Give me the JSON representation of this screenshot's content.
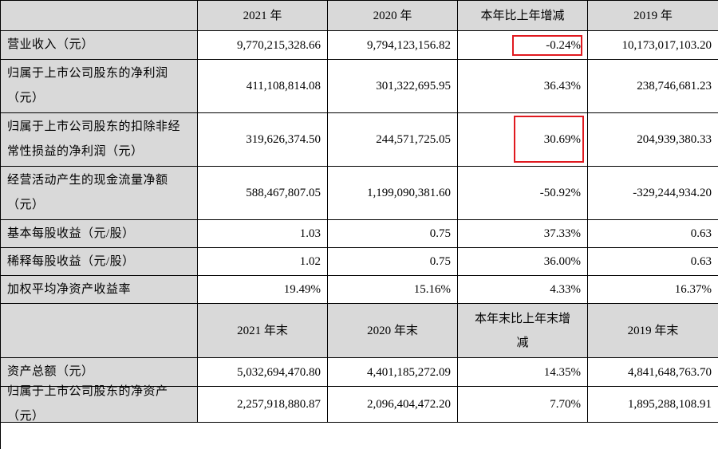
{
  "header1": [
    "",
    "2021 年",
    "2020 年",
    "本年比上年增减",
    "2019 年"
  ],
  "rows1": [
    {
      "label": "营业收入（元）",
      "v2021": "9,770,215,328.66",
      "v2020": "9,794,123,156.82",
      "change": "-0.24%",
      "v2019": "10,173,017,103.20"
    },
    {
      "label": "归属于上市公司股东的净利润（元）",
      "v2021": "411,108,814.08",
      "v2020": "301,322,695.95",
      "change": "36.43%",
      "v2019": "238,746,681.23"
    },
    {
      "label": "归属于上市公司股东的扣除非经常性损益的净利润（元）",
      "v2021": "319,626,374.50",
      "v2020": "244,571,725.05",
      "change": "30.69%",
      "v2019": "204,939,380.33"
    },
    {
      "label": "经营活动产生的现金流量净额（元）",
      "v2021": "588,467,807.05",
      "v2020": "1,199,090,381.60",
      "change": "-50.92%",
      "v2019": "-329,244,934.20"
    },
    {
      "label": "基本每股收益（元/股）",
      "v2021": "1.03",
      "v2020": "0.75",
      "change": "37.33%",
      "v2019": "0.63"
    },
    {
      "label": "稀释每股收益（元/股）",
      "v2021": "1.02",
      "v2020": "0.75",
      "change": "36.00%",
      "v2019": "0.63"
    },
    {
      "label": "加权平均净资产收益率",
      "v2021": "19.49%",
      "v2020": "15.16%",
      "change": "4.33%",
      "v2019": "16.37%"
    }
  ],
  "header2": [
    "",
    "2021 年末",
    "2020 年末",
    "本年末比上年末增减",
    "2019 年末"
  ],
  "rows2": [
    {
      "label": "资产总额（元）",
      "v2021": "5,032,694,470.80",
      "v2020": "4,401,185,272.09",
      "change": "14.35%",
      "v2019": "4,841,648,763.70"
    },
    {
      "label": "归属于上市公司股东的净资产（元）",
      "v2021": "2,257,918,880.87",
      "v2020": "2,096,404,472.20",
      "change": "7.70%",
      "v2019": "1,895,288,108.91"
    }
  ],
  "highlight_color": "#e0191f"
}
